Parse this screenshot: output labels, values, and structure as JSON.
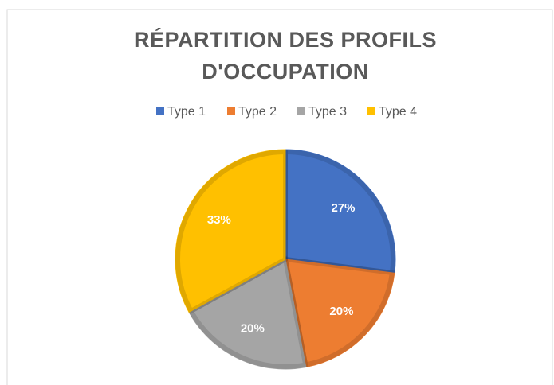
{
  "chart_data": {
    "type": "pie",
    "title": "RÉPARTITION DES PROFILS D'OCCUPATION",
    "categories": [
      "Type 1",
      "Type 2",
      "Type 3",
      "Type 4"
    ],
    "values": [
      27,
      20,
      20,
      33
    ],
    "value_labels": [
      "27%",
      "20%",
      "20%",
      "33%"
    ],
    "colors": [
      "#4472c4",
      "#ed7d31",
      "#a5a5a5",
      "#ffc000"
    ],
    "legend": "top"
  }
}
